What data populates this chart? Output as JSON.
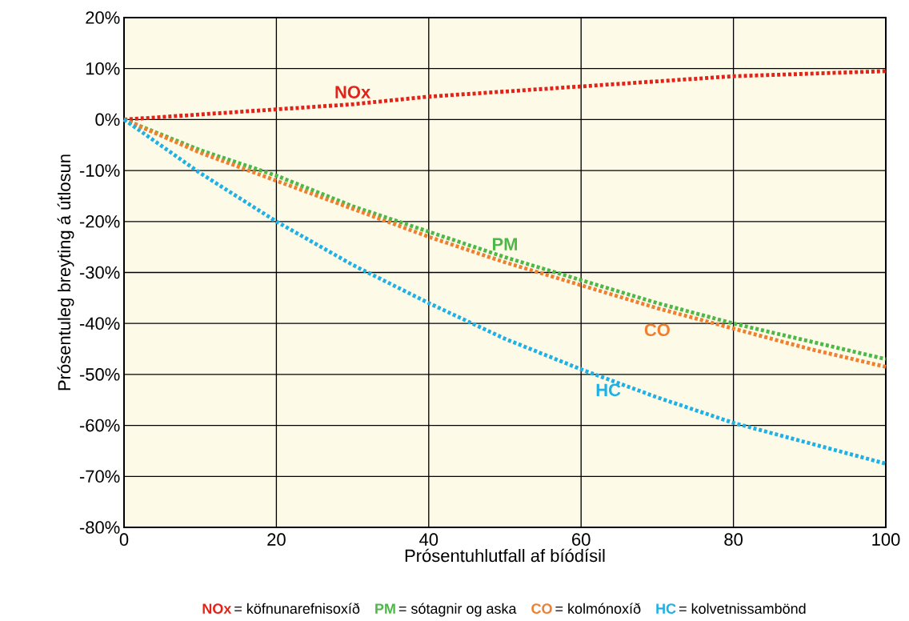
{
  "chart_data": {
    "type": "line",
    "xlabel": "Prósentuhlutfall af bíódísil",
    "ylabel": "Prósentuleg breyting á útlosun",
    "x": [
      0,
      10,
      20,
      30,
      40,
      50,
      60,
      70,
      80,
      90,
      100
    ],
    "series": [
      {
        "name": "NOx",
        "color": "#e2231a",
        "values": [
          0,
          1,
          2,
          3,
          4.5,
          5.5,
          6.5,
          7.5,
          8.5,
          9,
          9.5
        ]
      },
      {
        "name": "PM",
        "color": "#4db848",
        "values": [
          0,
          -6,
          -11,
          -17,
          -22,
          -27,
          -31.5,
          -36,
          -40,
          -43.5,
          -47
        ]
      },
      {
        "name": "CO",
        "color": "#f07f2f",
        "values": [
          0,
          -6.5,
          -12,
          -17.5,
          -23,
          -28,
          -32.5,
          -37,
          -41,
          -45,
          -48.5
        ]
      },
      {
        "name": "HC",
        "color": "#1fb1e6",
        "values": [
          0,
          -10.5,
          -20,
          -28.5,
          -36,
          -43,
          -49,
          -54.5,
          -59.5,
          -63.5,
          -67.5
        ]
      }
    ],
    "annotations": [
      "= köfnunarefnisoxíð",
      "= sótagnir og aska",
      "= kolmónoxíð",
      "= kolvetnissambönd"
    ],
    "xlim": [
      0,
      100
    ],
    "xticks": [
      0,
      20,
      40,
      60,
      80,
      100
    ],
    "ylim": [
      -80,
      20
    ],
    "yticks": [
      {
        "value": -80,
        "label": "-80%"
      },
      {
        "value": -70,
        "label": "-70%"
      },
      {
        "value": -60,
        "label": "-60%"
      },
      {
        "value": -50,
        "label": "-50%"
      },
      {
        "value": -40,
        "label": "-40%"
      },
      {
        "value": -30,
        "label": "-30%"
      },
      {
        "value": -20,
        "label": "-20%"
      },
      {
        "value": -10,
        "label": "-10%"
      },
      {
        "value": 0,
        "label": "0%"
      },
      {
        "value": 10,
        "label": "10%"
      },
      {
        "value": 20,
        "label": "20%"
      }
    ],
    "grid": true,
    "marker": "none",
    "line_style": "dotted"
  }
}
